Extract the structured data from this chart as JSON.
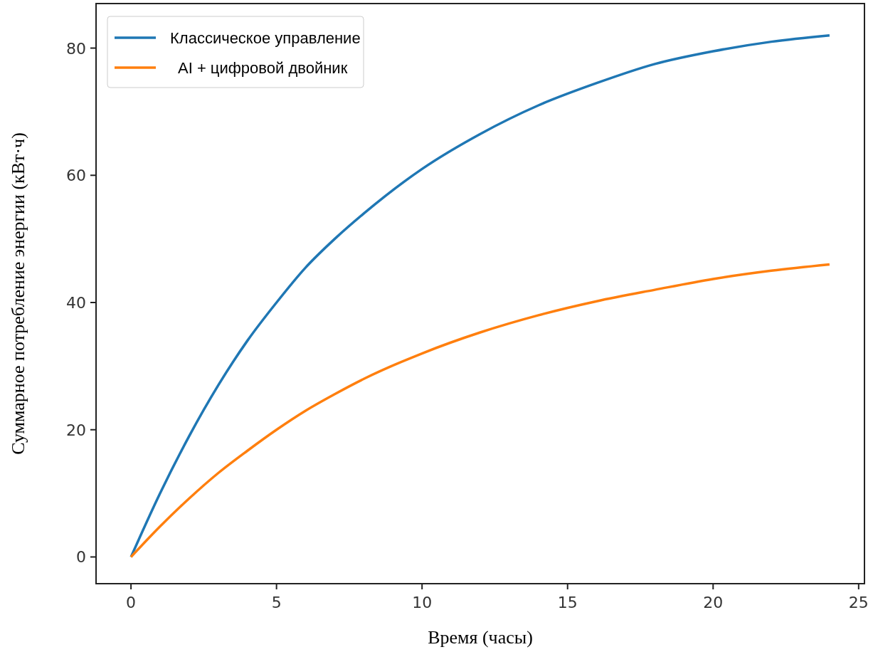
{
  "chart_data": {
    "type": "line",
    "xlabel": "Время (часы)",
    "ylabel": "Суммарное потребление энергии (кВт·ч)",
    "x": [
      0,
      1,
      2,
      3,
      4,
      5,
      6,
      7,
      8,
      10,
      12,
      14,
      16,
      18,
      20,
      22,
      24
    ],
    "series": [
      {
        "name": "Классическое управление",
        "color": "#1f77b4",
        "values": [
          0,
          10,
          19,
          27,
          34,
          40,
          45.5,
          50,
          54,
          61,
          66.5,
          71,
          74.5,
          77.5,
          79.5,
          81,
          82
        ]
      },
      {
        "name": "  AI + цифровой двойник",
        "color": "#ff7f0e",
        "values": [
          0,
          4.8,
          9.2,
          13.2,
          16.7,
          20,
          23,
          25.6,
          28,
          32,
          35.3,
          38,
          40.2,
          42,
          43.7,
          45,
          46
        ]
      }
    ],
    "xlim": [
      -1.2,
      25.2
    ],
    "ylim": [
      -4.2,
      87
    ],
    "xticks": [
      0,
      5,
      10,
      15,
      20,
      25
    ],
    "yticks": [
      0,
      20,
      40,
      60,
      80
    ],
    "legend": "top left",
    "grid": false,
    "line_style": "solid",
    "marker": "none"
  }
}
